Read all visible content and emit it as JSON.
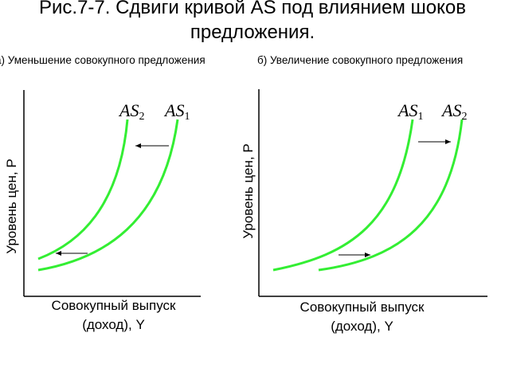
{
  "title_line1": "Рис.7-7. Сдвиги кривой AS под влиянием шоков",
  "title_line2": "предложения.",
  "left_panel": {
    "caption": "а) Уменьшение совокупного предложения",
    "ylabel": "Уровень цен, P",
    "xlabel_line1": "Совокупный выпуск",
    "xlabel_line2": "(доход), Y",
    "curve_label_a": "AS",
    "curve_label_a_sub": "2",
    "curve_label_b": "AS",
    "curve_label_b_sub": "1",
    "shift_direction": "left"
  },
  "right_panel": {
    "caption": "б) Увеличение совокупного предложения",
    "ylabel": "Уровень цен, P",
    "xlabel_line1": "Совокупный выпуск",
    "xlabel_line2": "(доход), Y",
    "curve_label_a": "AS",
    "curve_label_a_sub": "1",
    "curve_label_b": "AS",
    "curve_label_b_sub": "2",
    "shift_direction": "right"
  },
  "colors": {
    "curve": "#33ee33",
    "axis": "#000000",
    "arrow": "#000000"
  }
}
